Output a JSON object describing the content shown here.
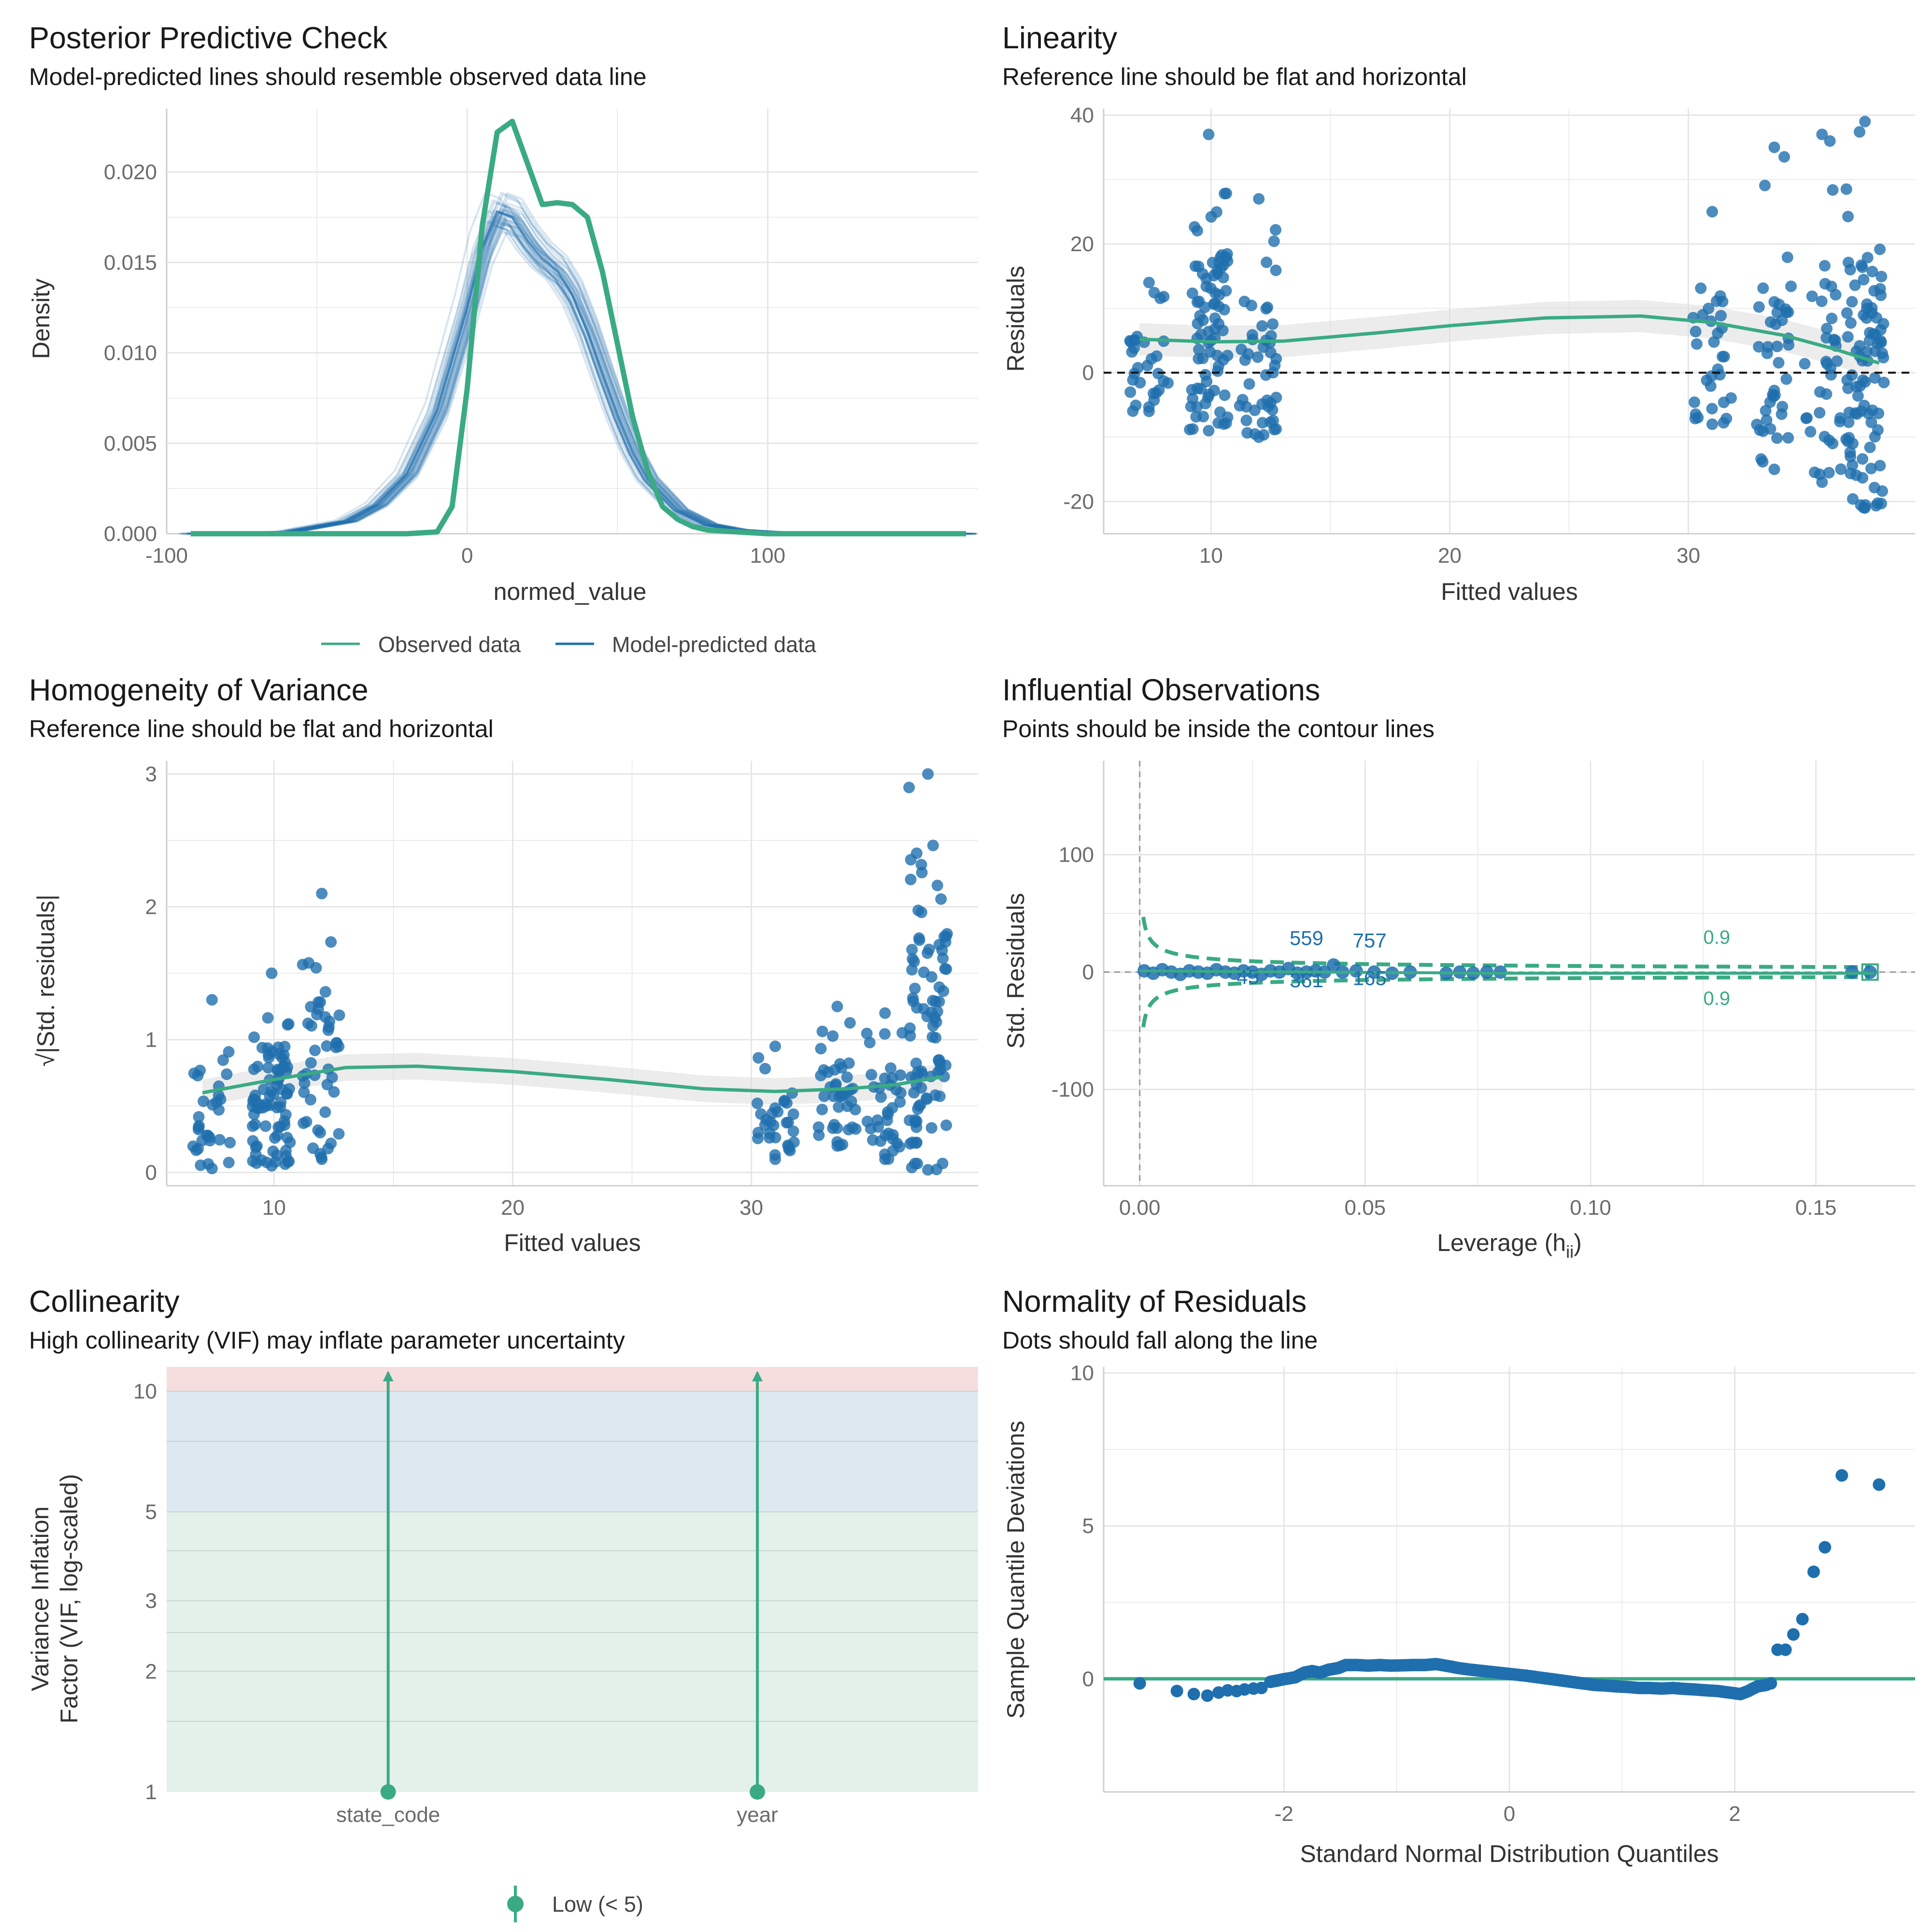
{
  "colors": {
    "observed": "#3aaa85",
    "predicted": "#1f6fae",
    "ribbon": "#d9d9d9",
    "grid": "#e6e6e6",
    "text": "#1a1a1a",
    "axis_text": "#6b6b6b",
    "vif_low": "#e3f1ea",
    "vif_moderate": "#dde8f1",
    "vif_high": "#f6dede"
  },
  "chart_data": [
    {
      "type": "line",
      "title": "Posterior Predictive Check",
      "subtitle": "Model-predicted lines should resemble observed data line",
      "xlabel": "normed_value",
      "ylabel": "Density",
      "xlim": [
        -100,
        170
      ],
      "ylim": [
        0,
        0.0235
      ],
      "xticks": [
        -100,
        0,
        100
      ],
      "xtick_labels": [
        "-100",
        "0",
        "100"
      ],
      "yticks": [
        0,
        0.005,
        0.01,
        0.015,
        0.02
      ],
      "ytick_labels": [
        "0.000",
        "0.005",
        "0.010",
        "0.015",
        "0.020"
      ],
      "grid": true,
      "legend": {
        "position": "bottom",
        "entries": [
          "Observed data",
          "Model-predicted data"
        ]
      },
      "series": [
        {
          "name": "Observed data",
          "x": [
            -92,
            -20,
            -10,
            -5,
            0,
            5,
            10,
            15,
            20,
            25,
            30,
            35,
            40,
            45,
            50,
            55,
            60,
            65,
            70,
            75,
            80,
            90,
            100,
            120,
            166
          ],
          "y": [
            0,
            0,
            0.0001,
            0.0015,
            0.008,
            0.017,
            0.0222,
            0.0228,
            0.0205,
            0.0182,
            0.0183,
            0.0182,
            0.0175,
            0.0145,
            0.0105,
            0.0065,
            0.0035,
            0.0015,
            0.0008,
            0.0004,
            0.0002,
            0.0001,
            0,
            0,
            0
          ]
        },
        {
          "name": "Model-predicted data",
          "x": [
            -92,
            -60,
            -40,
            -30,
            -20,
            -10,
            0,
            5,
            10,
            15,
            20,
            25,
            30,
            35,
            40,
            45,
            50,
            55,
            60,
            70,
            80,
            90,
            100,
            120,
            166
          ],
          "y": [
            0,
            0.0001,
            0.0007,
            0.0016,
            0.0033,
            0.0068,
            0.0125,
            0.0158,
            0.0178,
            0.0175,
            0.0162,
            0.0152,
            0.0145,
            0.0132,
            0.0112,
            0.0088,
            0.0065,
            0.0045,
            0.003,
            0.0013,
            0.0005,
            0.0002,
            0.0001,
            0,
            0
          ]
        }
      ]
    },
    {
      "type": "scatter",
      "title": "Linearity",
      "subtitle": "Reference line should be flat and horizontal",
      "xlabel": "Fitted values",
      "ylabel": "Residuals",
      "xlim": [
        5.5,
        39.5
      ],
      "ylim": [
        -25,
        41
      ],
      "xticks": [
        10,
        20,
        30
      ],
      "xtick_labels": [
        "10",
        "20",
        "30"
      ],
      "yticks": [
        -20,
        0,
        20,
        40
      ],
      "ytick_labels": [
        "-20",
        "0",
        "20",
        "40"
      ],
      "reference_line": 0,
      "grid": true,
      "clusters": [
        {
          "x": 7.4,
          "ymin": -6,
          "ymax": 14,
          "n": 30
        },
        {
          "x": 9.9,
          "ymin": -9,
          "ymax": 37,
          "n": 80
        },
        {
          "x": 12.0,
          "ymin": -10,
          "ymax": 27,
          "n": 45
        },
        {
          "x": 31.0,
          "ymin": -8,
          "ymax": 25,
          "n": 30
        },
        {
          "x": 33.6,
          "ymin": -15,
          "ymax": 35,
          "n": 40
        },
        {
          "x": 35.6,
          "ymin": -17,
          "ymax": 37,
          "n": 35
        },
        {
          "x": 37.4,
          "ymin": -21,
          "ymax": 39,
          "n": 90
        }
      ],
      "smooth": {
        "x": [
          7,
          10,
          13,
          17,
          20,
          24,
          28,
          31,
          34,
          36,
          38
        ],
        "y": [
          5.2,
          4.8,
          4.9,
          6.2,
          7.3,
          8.5,
          8.8,
          7.8,
          5.8,
          3.8,
          1.5
        ]
      }
    },
    {
      "type": "scatter",
      "title": "Homogeneity of Variance",
      "subtitle": "Reference line should be flat and horizontal",
      "xlabel": "Fitted values",
      "ylabel": "√|Std. residuals|",
      "xlim": [
        5.5,
        39.5
      ],
      "ylim": [
        -0.1,
        3.1
      ],
      "xticks": [
        10,
        20,
        30
      ],
      "xtick_labels": [
        "10",
        "20",
        "30"
      ],
      "yticks": [
        0,
        1,
        2,
        3
      ],
      "ytick_labels": [
        "0",
        "1",
        "2",
        "3"
      ],
      "grid": true,
      "clusters": [
        {
          "x": 7.4,
          "ymin": 0.03,
          "ymax": 1.3,
          "n": 30
        },
        {
          "x": 9.9,
          "ymin": 0.05,
          "ymax": 1.5,
          "n": 80
        },
        {
          "x": 12.0,
          "ymin": 0.1,
          "ymax": 2.1,
          "n": 45
        },
        {
          "x": 31.0,
          "ymin": 0.1,
          "ymax": 0.95,
          "n": 30
        },
        {
          "x": 33.6,
          "ymin": 0.2,
          "ymax": 1.25,
          "n": 40
        },
        {
          "x": 35.6,
          "ymin": 0.1,
          "ymax": 1.2,
          "n": 35
        },
        {
          "x": 37.4,
          "ymin": 0.02,
          "ymax": 3.0,
          "n": 90
        }
      ],
      "smooth": {
        "x": [
          7,
          10,
          13,
          16,
          20,
          24,
          28,
          31,
          34,
          36,
          38
        ],
        "y": [
          0.6,
          0.7,
          0.79,
          0.8,
          0.76,
          0.7,
          0.63,
          0.61,
          0.63,
          0.66,
          0.72
        ]
      }
    },
    {
      "type": "scatter",
      "title": "Influential Observations",
      "subtitle": "Points should be inside the contour lines",
      "xlabel": "Leverage (h",
      "xlabel_sub": "ii",
      "xlabel_end": ")",
      "ylabel": "Std. Residuals",
      "xlim": [
        -0.008,
        0.172
      ],
      "ylim": [
        -182,
        180
      ],
      "xticks": [
        0,
        0.05,
        0.1,
        0.15
      ],
      "xtick_labels": [
        "0.00",
        "0.05",
        "0.10",
        "0.15"
      ],
      "yticks": [
        -100,
        0,
        100
      ],
      "ytick_labels": [
        "-100",
        "0",
        "100"
      ],
      "contour_label": "0.9",
      "point_labels": [
        {
          "text": "559",
          "x": 0.037,
          "y": 23
        },
        {
          "text": "757",
          "x": 0.051,
          "y": 21
        },
        {
          "text": "45",
          "x": 0.024,
          "y": -10
        },
        {
          "text": "361",
          "x": 0.037,
          "y": -13
        },
        {
          "text": "165",
          "x": 0.051,
          "y": -11
        }
      ],
      "points": [
        [
          0.001,
          1
        ],
        [
          0.003,
          -1
        ],
        [
          0.005,
          2
        ],
        [
          0.007,
          0
        ],
        [
          0.009,
          -2
        ],
        [
          0.011,
          1
        ],
        [
          0.013,
          0
        ],
        [
          0.015,
          -1
        ],
        [
          0.017,
          2
        ],
        [
          0.019,
          0
        ],
        [
          0.021,
          -1
        ],
        [
          0.023,
          1
        ],
        [
          0.025,
          0
        ],
        [
          0.027,
          -2
        ],
        [
          0.029,
          1
        ],
        [
          0.031,
          0
        ],
        [
          0.033,
          3
        ],
        [
          0.035,
          -1
        ],
        [
          0.037,
          0
        ],
        [
          0.039,
          1
        ],
        [
          0.041,
          0
        ],
        [
          0.043,
          6
        ],
        [
          0.045,
          0
        ],
        [
          0.048,
          1
        ],
        [
          0.052,
          0
        ],
        [
          0.056,
          -1
        ],
        [
          0.06,
          0
        ],
        [
          0.068,
          -1
        ],
        [
          0.071,
          0
        ],
        [
          0.074,
          -1
        ],
        [
          0.077,
          0
        ],
        [
          0.08,
          0
        ],
        [
          0.158,
          0
        ],
        [
          0.162,
          0
        ]
      ]
    },
    {
      "type": "bar",
      "title": "Collinearity",
      "subtitle": "High collinearity (VIF) may inflate parameter uncertainty",
      "ylabel_line1": "Variance Inflation",
      "ylabel_line2": "Factor (VIF, log-scaled)",
      "categories": [
        "state_code",
        "year"
      ],
      "values": [
        1,
        1
      ],
      "ylim": [
        1,
        11.5
      ],
      "yscale": "log",
      "yticks": [
        1,
        2,
        3,
        5,
        10
      ],
      "ytick_labels": [
        "1",
        "2",
        "3",
        "5",
        "10"
      ],
      "legend": {
        "position": "bottom",
        "entries": [
          "Low (< 5)"
        ]
      }
    },
    {
      "type": "scatter",
      "title": "Normality of Residuals",
      "subtitle": "Dots should fall along the line",
      "xlabel": "Standard Normal Distribution Quantiles",
      "ylabel": "Sample Quantile Deviations",
      "xlim": [
        -3.6,
        3.6
      ],
      "ylim": [
        -3.7,
        10.2
      ],
      "xticks": [
        -2,
        0,
        2
      ],
      "xtick_labels": [
        "-2",
        "0",
        "2"
      ],
      "yticks": [
        0,
        5,
        10
      ],
      "ytick_labels": [
        "0",
        "5",
        "10"
      ],
      "reference_line": 0,
      "points": [
        [
          -3.28,
          -0.15
        ],
        [
          -2.95,
          -0.4
        ],
        [
          -2.8,
          -0.5
        ],
        [
          -2.68,
          -0.55
        ],
        [
          -2.58,
          -0.45
        ],
        [
          -2.5,
          -0.38
        ],
        [
          -2.42,
          -0.4
        ],
        [
          -2.35,
          -0.35
        ],
        [
          -2.27,
          -0.32
        ],
        [
          -2.2,
          -0.3
        ],
        [
          -2.12,
          -0.1
        ],
        [
          -2.05,
          -0.05
        ],
        [
          -1.98,
          0.0
        ],
        [
          -1.9,
          0.05
        ],
        [
          -1.82,
          0.2
        ],
        [
          -1.75,
          0.25
        ],
        [
          -1.68,
          0.2
        ],
        [
          -1.6,
          0.3
        ],
        [
          -1.52,
          0.35
        ],
        [
          -1.45,
          0.45
        ],
        [
          -1.35,
          0.45
        ],
        [
          -1.25,
          0.43
        ],
        [
          -1.15,
          0.45
        ],
        [
          -1.05,
          0.43
        ],
        [
          -0.95,
          0.44
        ],
        [
          -0.85,
          0.45
        ],
        [
          -0.75,
          0.45
        ],
        [
          -0.65,
          0.48
        ],
        [
          -0.55,
          0.42
        ],
        [
          -0.45,
          0.35
        ],
        [
          -0.35,
          0.3
        ],
        [
          -0.25,
          0.26
        ],
        [
          -0.15,
          0.22
        ],
        [
          -0.05,
          0.18
        ],
        [
          0.05,
          0.14
        ],
        [
          0.15,
          0.1
        ],
        [
          0.25,
          0.05
        ],
        [
          0.35,
          0.0
        ],
        [
          0.45,
          -0.05
        ],
        [
          0.55,
          -0.1
        ],
        [
          0.65,
          -0.15
        ],
        [
          0.75,
          -0.2
        ],
        [
          0.85,
          -0.22
        ],
        [
          0.95,
          -0.25
        ],
        [
          1.05,
          -0.27
        ],
        [
          1.15,
          -0.3
        ],
        [
          1.25,
          -0.3
        ],
        [
          1.35,
          -0.32
        ],
        [
          1.45,
          -0.3
        ],
        [
          1.55,
          -0.33
        ],
        [
          1.65,
          -0.35
        ],
        [
          1.75,
          -0.38
        ],
        [
          1.85,
          -0.4
        ],
        [
          1.95,
          -0.45
        ],
        [
          2.05,
          -0.5
        ],
        [
          2.12,
          -0.4
        ],
        [
          2.2,
          -0.25
        ],
        [
          2.28,
          -0.2
        ],
        [
          2.32,
          -0.15
        ],
        [
          2.38,
          0.95
        ],
        [
          2.45,
          0.95
        ],
        [
          2.52,
          1.45
        ],
        [
          2.6,
          1.95
        ],
        [
          2.7,
          3.5
        ],
        [
          2.8,
          4.3
        ],
        [
          2.95,
          6.65
        ],
        [
          3.28,
          6.35
        ]
      ]
    }
  ]
}
